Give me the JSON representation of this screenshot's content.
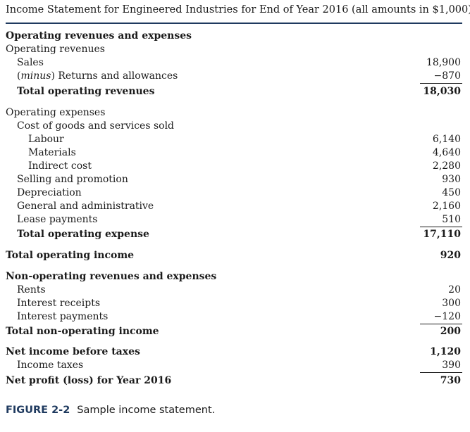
{
  "title": "Income Statement for Engineered Industries for End of Year 2016 (all amounts in $1,000)",
  "operating": {
    "heading": "Operating revenues and expenses",
    "revenues_heading": "Operating revenues",
    "sales": {
      "label": "Sales",
      "value": "18,900"
    },
    "returns": {
      "label_italic": "minus",
      "label": "Returns and allowances",
      "value": "−870"
    },
    "total_revenues": {
      "label": "Total operating revenues",
      "value": "18,030"
    },
    "expenses_heading": "Operating expenses",
    "cogs_heading": "Cost of goods and services sold",
    "labour": {
      "label": "Labour",
      "value": "6,140"
    },
    "materials": {
      "label": "Materials",
      "value": "4,640"
    },
    "indirect": {
      "label": "Indirect cost",
      "value": "2,280"
    },
    "selling": {
      "label": "Selling and promotion",
      "value": "930"
    },
    "depreciation": {
      "label": "Depreciation",
      "value": "450"
    },
    "general": {
      "label": "General and administrative",
      "value": "2,160"
    },
    "lease": {
      "label": "Lease payments",
      "value": "510"
    },
    "total_expense": {
      "label": "Total operating expense",
      "value": "17,110"
    },
    "total_income": {
      "label": "Total operating income",
      "value": "920"
    }
  },
  "non_operating": {
    "heading": "Non-operating revenues and expenses",
    "rents": {
      "label": "Rents",
      "value": "20"
    },
    "interest_receipts": {
      "label": "Interest receipts",
      "value": "300"
    },
    "interest_payments": {
      "label": "Interest payments",
      "value": "−120"
    },
    "total": {
      "label": "Total non-operating income",
      "value": "200"
    }
  },
  "net": {
    "before_taxes": {
      "label": "Net income before taxes",
      "value": "1,120"
    },
    "taxes": {
      "label": "Income taxes",
      "value": "390"
    },
    "profit": {
      "label": "Net profit (loss) for Year 2016",
      "value": "730"
    }
  },
  "caption": {
    "figure": "FIGURE 2-2",
    "text": "Sample income statement."
  }
}
